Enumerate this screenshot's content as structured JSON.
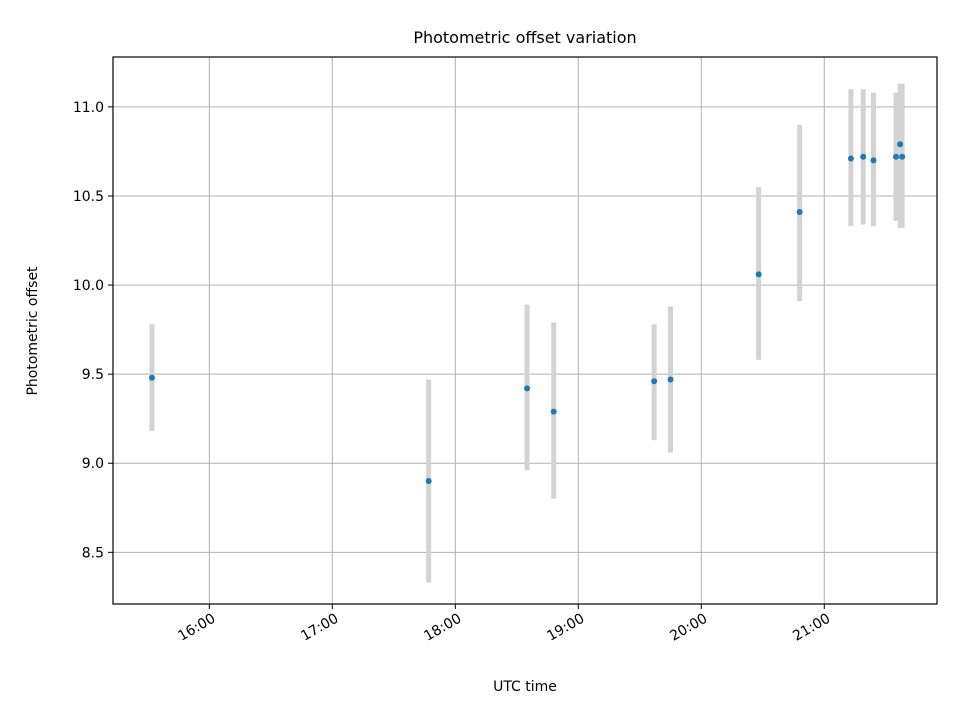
{
  "chart_data": {
    "type": "scatter",
    "title": "Photometric offset variation",
    "xlabel": "UTC time",
    "ylabel": "Photometric offset",
    "x_ticks": [
      "16:00",
      "17:00",
      "18:00",
      "19:00",
      "20:00",
      "21:00"
    ],
    "y_ticks": [
      "8.5",
      "9.0",
      "9.5",
      "10.0",
      "10.5",
      "11.0"
    ],
    "xlim": [
      "15:13",
      "21:55"
    ],
    "ylim": [
      8.21,
      11.28
    ],
    "grid": true,
    "colors": {
      "points": "#1f77b4",
      "errorbars": "#d3d3d3",
      "grid": "#b0b0b0"
    },
    "series": [
      {
        "x": [
          "15:32",
          "17:47",
          "18:35",
          "18:48",
          "19:37",
          "19:45",
          "20:28",
          "20:48",
          "21:13",
          "21:19",
          "21:24",
          "21:35",
          "21:37",
          "21:38"
        ],
        "y": [
          9.48,
          8.9,
          9.42,
          9.29,
          9.46,
          9.47,
          10.06,
          10.41,
          10.71,
          10.72,
          10.7,
          10.72,
          10.79,
          10.72
        ],
        "yerr_low": [
          9.18,
          8.33,
          8.96,
          8.8,
          9.13,
          9.06,
          9.58,
          9.91,
          10.33,
          10.34,
          10.33,
          10.36,
          10.32,
          10.32
        ],
        "yerr_high": [
          9.78,
          9.47,
          9.89,
          9.79,
          9.78,
          9.88,
          10.55,
          10.9,
          11.1,
          11.1,
          11.08,
          11.08,
          11.13,
          11.13
        ]
      }
    ]
  }
}
